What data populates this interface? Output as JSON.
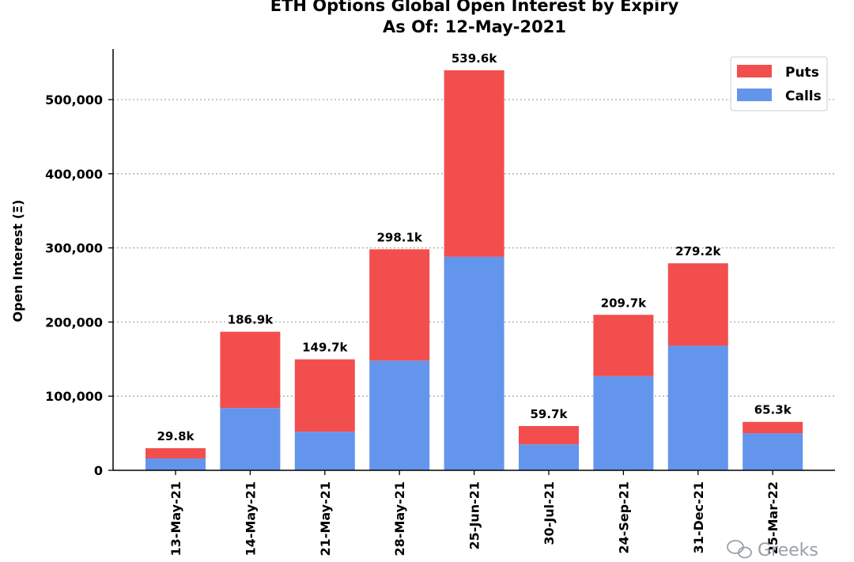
{
  "chart_data": {
    "type": "bar",
    "stacked": true,
    "title": "ETH Options Global Open Interest by Expiry",
    "subtitle": "As Of: 12-May-2021",
    "xlabel": "",
    "ylabel": "Open Interest (Ξ)",
    "ylim": [
      0,
      560000
    ],
    "yticks": [
      0,
      100000,
      200000,
      300000,
      400000,
      500000
    ],
    "ytick_labels": [
      "0",
      "100,000",
      "200,000",
      "300,000",
      "400,000",
      "500,000"
    ],
    "grid": "horizontal dotted",
    "legend_position": "top-right",
    "categories": [
      "13-May-21",
      "14-May-21",
      "21-May-21",
      "28-May-21",
      "25-Jun-21",
      "30-Jul-21",
      "24-Sep-21",
      "31-Dec-21",
      "25-Mar-22"
    ],
    "series": [
      {
        "name": "Calls",
        "color": "#6495ed",
        "values": [
          16000,
          84000,
          52000,
          148000,
          288000,
          35000,
          127000,
          168000,
          50000
        ]
      },
      {
        "name": "Puts",
        "color": "#f24e4e",
        "values": [
          13800,
          102900,
          97700,
          150100,
          251600,
          24700,
          82700,
          111200,
          15300
        ]
      }
    ],
    "totals_labels": [
      "29.8k",
      "186.9k",
      "149.7k",
      "298.1k",
      "539.6k",
      "59.7k",
      "209.7k",
      "279.2k",
      "65.3k"
    ]
  },
  "watermark": {
    "text": "Greeks",
    "icon": "wechat-icon"
  }
}
